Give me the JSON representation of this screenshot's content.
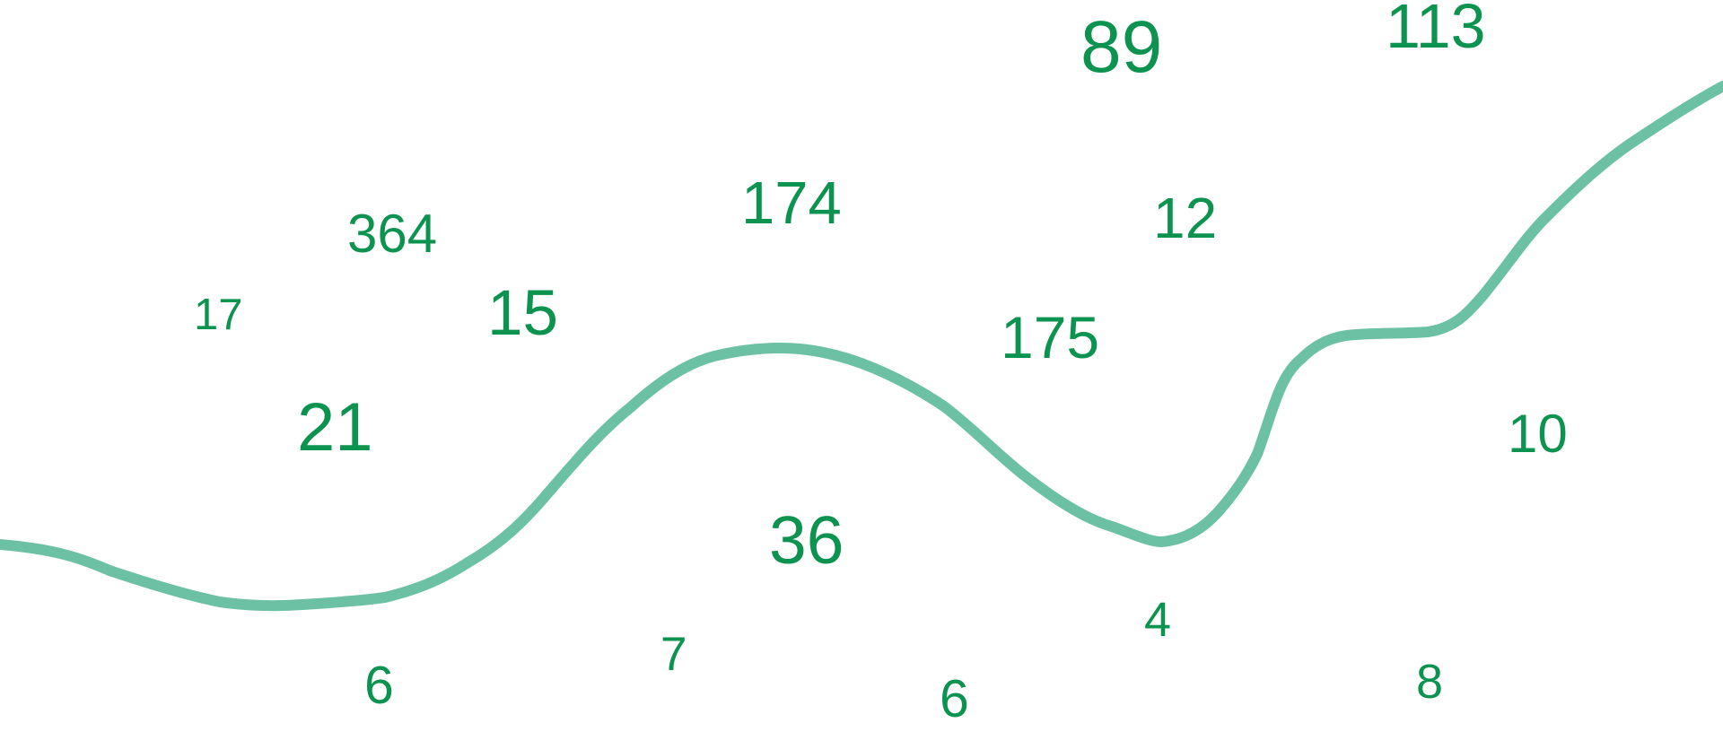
{
  "colors": {
    "number": "#0c9350",
    "curve": "#6cc1a4",
    "background": "#ffffff"
  },
  "numbers": [
    "364",
    "174",
    "17",
    "15",
    "21",
    "36",
    "7",
    "6",
    "89",
    "113",
    "12",
    "175",
    "10",
    "4",
    "8",
    "6"
  ]
}
